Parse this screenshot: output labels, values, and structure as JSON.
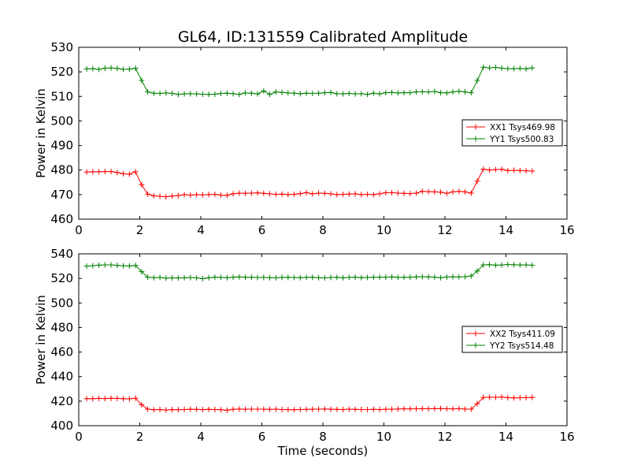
{
  "title": "GL64, ID:131559 Calibrated Amplitude",
  "chart_data": [
    {
      "type": "line",
      "ylabel": "Power in Kelvin",
      "xlabel": "",
      "xlim": [
        0,
        16
      ],
      "ylim": [
        460,
        530
      ],
      "xticks": [
        0,
        2,
        4,
        6,
        8,
        10,
        12,
        14,
        16
      ],
      "yticks": [
        460,
        470,
        480,
        490,
        500,
        510,
        520,
        530
      ],
      "legend_position": "right",
      "series": [
        {
          "name": "XX1 Tsys469.98",
          "color": "#ff0000",
          "x": [
            0.26,
            0.46,
            0.66,
            0.86,
            1.06,
            1.26,
            1.46,
            1.66,
            1.86,
            2.06,
            2.26,
            2.46,
            2.66,
            2.86,
            3.06,
            3.26,
            3.46,
            3.66,
            3.86,
            4.06,
            4.26,
            4.46,
            4.66,
            4.86,
            5.06,
            5.26,
            5.46,
            5.66,
            5.86,
            6.06,
            6.26,
            6.46,
            6.66,
            6.86,
            7.06,
            7.26,
            7.46,
            7.66,
            7.86,
            8.06,
            8.26,
            8.46,
            8.66,
            8.86,
            9.06,
            9.26,
            9.46,
            9.66,
            9.86,
            10.06,
            10.26,
            10.46,
            10.66,
            10.86,
            11.06,
            11.26,
            11.46,
            11.66,
            11.86,
            12.06,
            12.26,
            12.46,
            12.66,
            12.86,
            13.06,
            13.26,
            13.46,
            13.66,
            13.86,
            14.06,
            14.26,
            14.46,
            14.66,
            14.86
          ],
          "values": [
            479.2,
            479.3,
            479.3,
            479.4,
            479.4,
            479.0,
            478.5,
            478.3,
            479.3,
            474.0,
            470.2,
            469.5,
            469.3,
            469.1,
            469.4,
            469.6,
            470.0,
            469.8,
            470.0,
            469.9,
            470.0,
            470.1,
            469.8,
            469.7,
            470.3,
            470.6,
            470.5,
            470.6,
            470.7,
            470.5,
            470.3,
            470.1,
            470.2,
            470.0,
            470.1,
            470.4,
            470.8,
            470.3,
            470.6,
            470.5,
            470.3,
            470.0,
            470.1,
            470.2,
            470.3,
            470.0,
            470.1,
            470.0,
            470.3,
            470.8,
            470.8,
            470.6,
            470.5,
            470.4,
            470.6,
            471.3,
            471.2,
            471.1,
            471.0,
            470.5,
            471.1,
            471.3,
            471.1,
            470.6,
            475.5,
            480.4,
            480.0,
            480.2,
            480.3,
            479.8,
            479.9,
            479.8,
            479.7,
            479.6
          ]
        },
        {
          "name": "YY1 Tsys500.83",
          "color": "#008000",
          "x": [
            0.26,
            0.46,
            0.66,
            0.86,
            1.06,
            1.26,
            1.46,
            1.66,
            1.86,
            2.06,
            2.26,
            2.46,
            2.66,
            2.86,
            3.06,
            3.26,
            3.46,
            3.66,
            3.86,
            4.06,
            4.26,
            4.46,
            4.66,
            4.86,
            5.06,
            5.26,
            5.46,
            5.66,
            5.86,
            6.06,
            6.26,
            6.46,
            6.66,
            6.86,
            7.06,
            7.26,
            7.46,
            7.66,
            7.86,
            8.06,
            8.26,
            8.46,
            8.66,
            8.86,
            9.06,
            9.26,
            9.46,
            9.66,
            9.86,
            10.06,
            10.26,
            10.46,
            10.66,
            10.86,
            11.06,
            11.26,
            11.46,
            11.66,
            11.86,
            12.06,
            12.26,
            12.46,
            12.66,
            12.86,
            13.06,
            13.26,
            13.46,
            13.66,
            13.86,
            14.06,
            14.26,
            14.46,
            14.66,
            14.86
          ],
          "values": [
            521.2,
            521.3,
            521.0,
            521.5,
            521.6,
            521.4,
            521.0,
            521.1,
            521.5,
            516.5,
            511.8,
            511.3,
            511.2,
            511.4,
            511.2,
            510.8,
            511.0,
            511.1,
            511.0,
            510.9,
            510.8,
            510.9,
            511.2,
            511.3,
            511.1,
            510.8,
            511.4,
            511.3,
            511.0,
            512.2,
            510.8,
            511.8,
            511.6,
            511.4,
            511.3,
            511.1,
            511.3,
            511.2,
            511.3,
            511.5,
            511.6,
            511.1,
            511.0,
            511.2,
            511.0,
            511.1,
            510.8,
            511.3,
            511.0,
            511.5,
            511.6,
            511.4,
            511.5,
            511.5,
            511.8,
            511.9,
            511.8,
            512.0,
            511.5,
            511.4,
            511.8,
            512.1,
            511.8,
            511.5,
            516.5,
            521.9,
            521.6,
            521.8,
            521.5,
            521.3,
            521.3,
            521.4,
            521.2,
            521.6
          ]
        }
      ]
    },
    {
      "type": "line",
      "ylabel": "Power in Kelvin",
      "xlabel": "Time (seconds)",
      "xlim": [
        0,
        16
      ],
      "ylim": [
        400,
        540
      ],
      "xticks": [
        0,
        2,
        4,
        6,
        8,
        10,
        12,
        14,
        16
      ],
      "yticks": [
        400,
        420,
        440,
        460,
        480,
        500,
        520,
        540
      ],
      "legend_position": "right",
      "series": [
        {
          "name": "XX2 Tsys411.09",
          "color": "#ff0000",
          "x": [
            0.26,
            0.46,
            0.66,
            0.86,
            1.06,
            1.26,
            1.46,
            1.66,
            1.86,
            2.06,
            2.26,
            2.46,
            2.66,
            2.86,
            3.06,
            3.26,
            3.46,
            3.66,
            3.86,
            4.06,
            4.26,
            4.46,
            4.66,
            4.86,
            5.06,
            5.26,
            5.46,
            5.66,
            5.86,
            6.06,
            6.26,
            6.46,
            6.66,
            6.86,
            7.06,
            7.26,
            7.46,
            7.66,
            7.86,
            8.06,
            8.26,
            8.46,
            8.66,
            8.86,
            9.06,
            9.26,
            9.46,
            9.66,
            9.86,
            10.06,
            10.26,
            10.46,
            10.66,
            10.86,
            11.06,
            11.26,
            11.46,
            11.66,
            11.86,
            12.06,
            12.26,
            12.46,
            12.66,
            12.86,
            13.06,
            13.26,
            13.46,
            13.66,
            13.86,
            14.06,
            14.26,
            14.46,
            14.66,
            14.86
          ],
          "values": [
            422.0,
            422.0,
            422.2,
            422.1,
            422.3,
            422.2,
            422.0,
            421.8,
            422.4,
            417.0,
            413.5,
            413.0,
            413.2,
            412.8,
            413.1,
            413.0,
            413.2,
            413.4,
            413.3,
            413.1,
            413.3,
            413.2,
            413.0,
            412.6,
            413.3,
            413.6,
            413.4,
            413.5,
            413.5,
            413.4,
            413.3,
            413.5,
            413.2,
            413.1,
            413.0,
            413.2,
            413.3,
            413.4,
            413.5,
            413.6,
            413.4,
            413.3,
            413.2,
            413.5,
            413.3,
            413.2,
            413.2,
            413.3,
            413.2,
            413.4,
            413.4,
            413.6,
            413.8,
            413.7,
            413.8,
            413.9,
            413.8,
            413.9,
            414.0,
            413.8,
            413.7,
            413.9,
            413.6,
            413.5,
            418.0,
            423.0,
            423.2,
            423.1,
            423.4,
            422.9,
            422.6,
            422.8,
            422.9,
            423.0
          ]
        },
        {
          "name": "YY2 Tsys514.48",
          "color": "#008000",
          "x": [
            0.26,
            0.46,
            0.66,
            0.86,
            1.06,
            1.26,
            1.46,
            1.66,
            1.86,
            2.06,
            2.26,
            2.46,
            2.66,
            2.86,
            3.06,
            3.26,
            3.46,
            3.66,
            3.86,
            4.06,
            4.26,
            4.46,
            4.66,
            4.86,
            5.06,
            5.26,
            5.46,
            5.66,
            5.86,
            6.06,
            6.26,
            6.46,
            6.66,
            6.86,
            7.06,
            7.26,
            7.46,
            7.66,
            7.86,
            8.06,
            8.26,
            8.46,
            8.66,
            8.86,
            9.06,
            9.26,
            9.46,
            9.66,
            9.86,
            10.06,
            10.26,
            10.46,
            10.66,
            10.86,
            11.06,
            11.26,
            11.46,
            11.66,
            11.86,
            12.06,
            12.26,
            12.46,
            12.66,
            12.86,
            13.06,
            13.26,
            13.46,
            13.66,
            13.86,
            14.06,
            14.26,
            14.46,
            14.66,
            14.86
          ],
          "values": [
            530.0,
            530.4,
            530.8,
            531.0,
            531.0,
            530.6,
            530.3,
            530.1,
            530.6,
            525.5,
            521.0,
            520.6,
            520.8,
            520.2,
            520.4,
            520.3,
            520.5,
            520.7,
            520.4,
            519.8,
            520.5,
            521.0,
            520.8,
            520.6,
            520.9,
            521.2,
            520.9,
            521.0,
            520.7,
            520.8,
            520.6,
            520.4,
            520.8,
            520.9,
            520.7,
            520.6,
            520.8,
            520.9,
            520.6,
            520.4,
            520.7,
            520.9,
            520.5,
            520.8,
            521.0,
            520.6,
            520.8,
            520.9,
            521.0,
            521.0,
            521.2,
            520.8,
            520.9,
            521.0,
            521.2,
            521.4,
            521.2,
            521.0,
            520.6,
            521.1,
            521.3,
            521.2,
            521.4,
            522.0,
            526.0,
            531.0,
            531.2,
            530.8,
            530.9,
            531.3,
            531.1,
            530.9,
            531.0,
            530.8
          ]
        }
      ]
    }
  ]
}
